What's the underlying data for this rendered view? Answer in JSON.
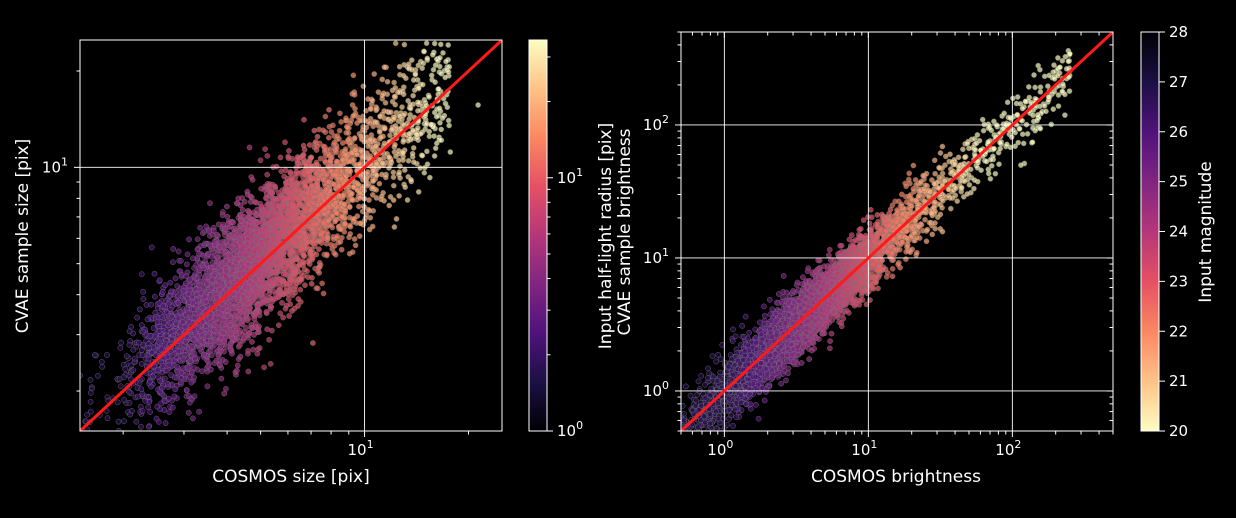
{
  "chart_data": [
    {
      "type": "scatter",
      "xlabel": "COSMOS size [pix]",
      "ylabel": "CVAE sample size [pix]",
      "xscale": "log",
      "yscale": "log",
      "xlim": [
        1.5,
        25
      ],
      "ylim": [
        1.5,
        25
      ],
      "x_major_ticks": [
        {
          "value": 10,
          "base": "10",
          "exp": "1"
        }
      ],
      "y_major_ticks": [
        {
          "value": 10,
          "base": "10",
          "exp": "1"
        }
      ],
      "grid": true,
      "reference_line": {
        "slope": 1,
        "color": "#ff1a1a"
      },
      "colorbar": {
        "label": "Input half-light radius [pix]",
        "scale": "log",
        "range": [
          1,
          35
        ],
        "cmap": "magma",
        "ticks": [
          {
            "value": 1,
            "base": "10",
            "exp": "0"
          },
          {
            "value": 10,
            "base": "10",
            "exp": "1"
          }
        ]
      },
      "point_cloud": {
        "count": 4500,
        "ratio_scatter_dex": 0.1,
        "color_by": "x"
      }
    },
    {
      "type": "scatter",
      "xlabel": "COSMOS brightness",
      "ylabel": "CVAE sample brightness",
      "xscale": "log",
      "yscale": "log",
      "xlim": [
        0.5,
        500
      ],
      "ylim": [
        0.5,
        500
      ],
      "x_major_ticks": [
        {
          "value": 1,
          "base": "10",
          "exp": "0"
        },
        {
          "value": 10,
          "base": "10",
          "exp": "1"
        },
        {
          "value": 100,
          "base": "10",
          "exp": "2"
        }
      ],
      "y_major_ticks": [
        {
          "value": 1,
          "base": "10",
          "exp": "0"
        },
        {
          "value": 10,
          "base": "10",
          "exp": "1"
        },
        {
          "value": 100,
          "base": "10",
          "exp": "2"
        }
      ],
      "grid": true,
      "reference_line": {
        "slope": 1,
        "color": "#ff1a1a"
      },
      "colorbar": {
        "label": "Input magnitude",
        "scale": "linear",
        "range": [
          20,
          28
        ],
        "cmap": "magma",
        "reversed": true,
        "ticks": [
          {
            "value": 20,
            "label": "20"
          },
          {
            "value": 21,
            "label": "21"
          },
          {
            "value": 22,
            "label": "22"
          },
          {
            "value": 23,
            "label": "23"
          },
          {
            "value": 24,
            "label": "24"
          },
          {
            "value": 25,
            "label": "25"
          },
          {
            "value": 26,
            "label": "26"
          },
          {
            "value": 27,
            "label": "27"
          },
          {
            "value": 28,
            "label": "28"
          }
        ]
      },
      "point_cloud": {
        "count": 4500,
        "ratio_scatter_dex": 0.12,
        "color_by": "x"
      }
    }
  ]
}
